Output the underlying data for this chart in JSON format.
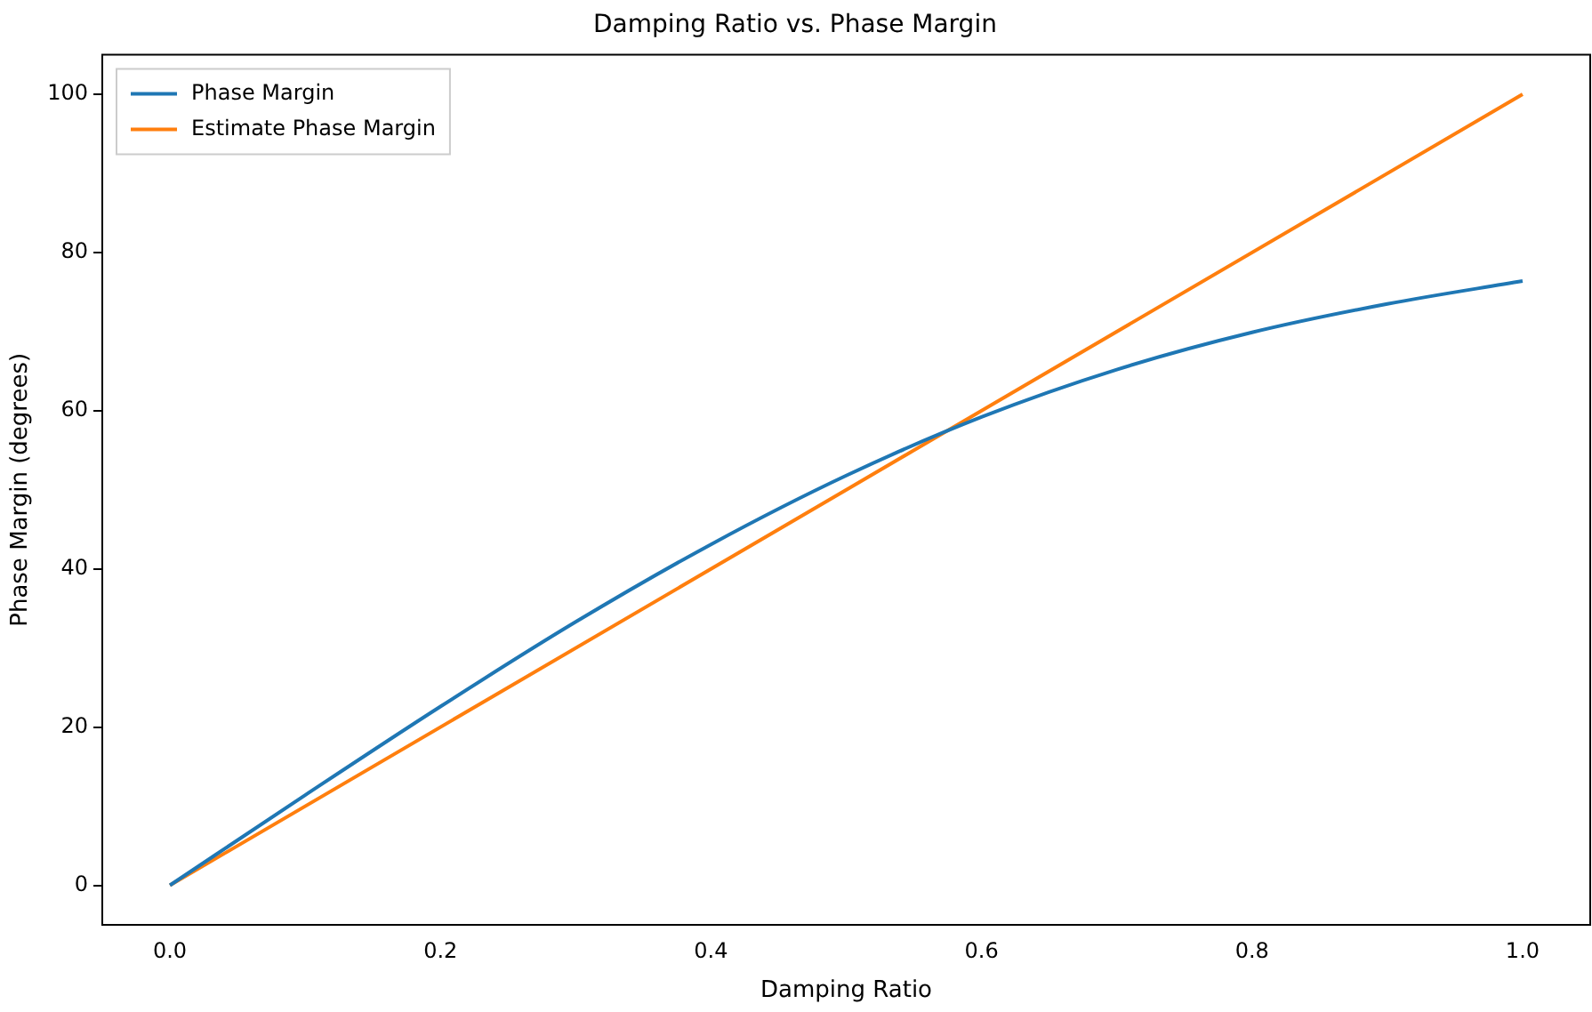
{
  "chart_data": {
    "type": "line",
    "title": "Damping Ratio vs. Phase Margin",
    "xlabel": "Damping Ratio",
    "ylabel": "Phase Margin (degrees)",
    "x": [
      0,
      0.1,
      0.2,
      0.3,
      0.4,
      0.5,
      0.6,
      0.7,
      0.8,
      0.9,
      1.0
    ],
    "series": [
      {
        "name": "Phase Margin",
        "color": "#1f77b4",
        "values": [
          0,
          11.4,
          22.6,
          33.3,
          43.1,
          51.8,
          59.2,
          65.2,
          69.9,
          73.5,
          76.4
        ]
      },
      {
        "name": "Estimate Phase Margin",
        "color": "#ff7f0e",
        "x": [
          0,
          1.0
        ],
        "values": [
          0,
          100
        ]
      }
    ],
    "xlim": [
      -0.05,
      1.05
    ],
    "xticks": [
      {
        "value": 0,
        "label": "0.0"
      },
      {
        "value": 0.2,
        "label": "0.2"
      },
      {
        "value": 0.4,
        "label": "0.4"
      },
      {
        "value": 0.6,
        "label": "0.6"
      },
      {
        "value": 0.8,
        "label": "0.8"
      },
      {
        "value": 1.0,
        "label": "1.0"
      }
    ],
    "ylim": [
      -5,
      105
    ],
    "yticks": [
      0,
      20,
      40,
      60,
      80,
      100
    ],
    "grid": false,
    "legend": "top left",
    "marker": "none",
    "line_style": "solid"
  }
}
